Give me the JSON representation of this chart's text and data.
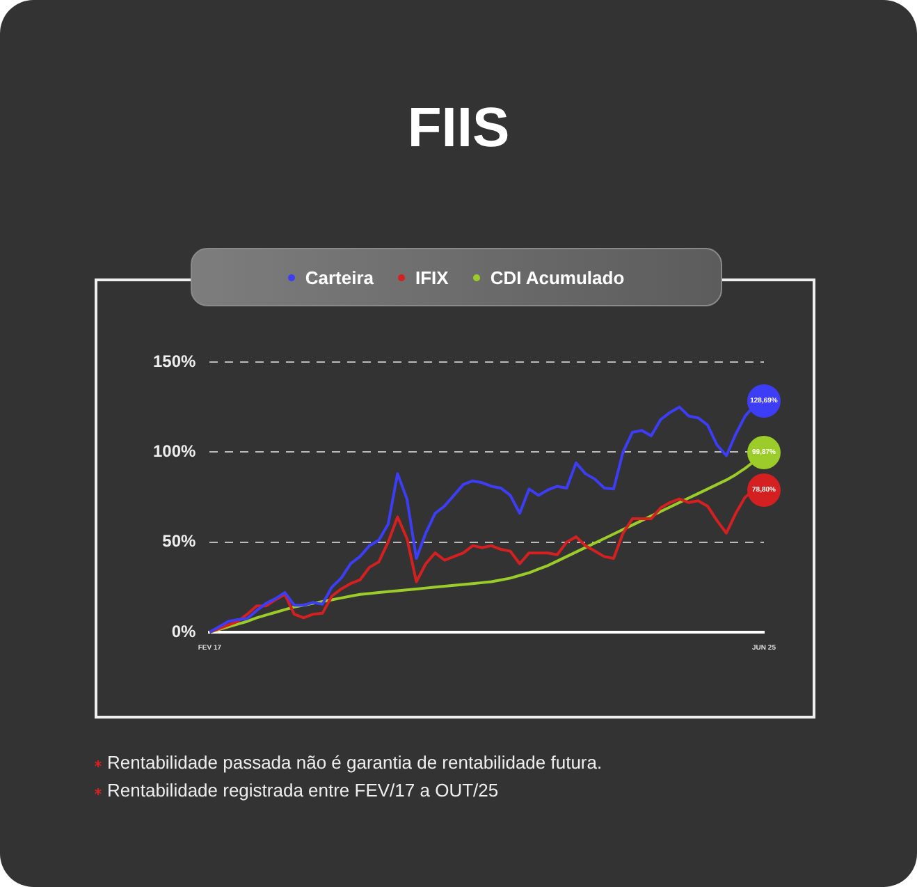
{
  "chart_data": {
    "type": "line",
    "title": "FIIS",
    "categories": [
      "FEV 17",
      null,
      null,
      null,
      null,
      null,
      null,
      null,
      null,
      null,
      null,
      null,
      null,
      null,
      null,
      null,
      null,
      null,
      null,
      null,
      null,
      null,
      null,
      null,
      null,
      null,
      null,
      null,
      null,
      null,
      null,
      null,
      null,
      null,
      null,
      null,
      null,
      null,
      null,
      null,
      null,
      null,
      null,
      null,
      null,
      null,
      null,
      null,
      null,
      null,
      null,
      null,
      null,
      null,
      null,
      null,
      null,
      null,
      null,
      "JUN 25"
    ],
    "series": [
      {
        "name": "Carteira",
        "color": "#3d3df5",
        "values": [
          0,
          3,
          6,
          7,
          7.5,
          12,
          16,
          18.6,
          22,
          15,
          15,
          16.5,
          15.5,
          25,
          30,
          38,
          42,
          48,
          51,
          60,
          88,
          74,
          41,
          55,
          66,
          70,
          76,
          82,
          84,
          83,
          81,
          80,
          76,
          66,
          79.5,
          76,
          79,
          81,
          80,
          94,
          88,
          85,
          80,
          79.5,
          100,
          111,
          112,
          109,
          118,
          122,
          125,
          120,
          119,
          115,
          104,
          98,
          110,
          120,
          126,
          128.69
        ],
        "value_labels": [
          null,
          null,
          null,
          null,
          null,
          null,
          null,
          null,
          null,
          null,
          null,
          null,
          null,
          null,
          null,
          null,
          null,
          null,
          null,
          null,
          null,
          null,
          null,
          null,
          null,
          null,
          null,
          null,
          null,
          null,
          null,
          null,
          null,
          null,
          null,
          null,
          null,
          null,
          null,
          null,
          null,
          null,
          null,
          null,
          null,
          null,
          null,
          null,
          null,
          null,
          null,
          null,
          null,
          null,
          null,
          null,
          null,
          null,
          null,
          "128,69%"
        ]
      },
      {
        "name": "IFIX",
        "color": "#d42020",
        "values": [
          0,
          2,
          4,
          6,
          10,
          14.6,
          14.6,
          18,
          21,
          10,
          8,
          10,
          10.5,
          20,
          24,
          27,
          29,
          36,
          39,
          50,
          64,
          52,
          28,
          38,
          44,
          40,
          42,
          44,
          48,
          47,
          48,
          46,
          45,
          38,
          44,
          44,
          44,
          43,
          50,
          53,
          48,
          45,
          42,
          41,
          55,
          63,
          63,
          63,
          69,
          72,
          74,
          72,
          73,
          70,
          62,
          55,
          66,
          75,
          79,
          78.8
        ],
        "value_labels": [
          null,
          null,
          null,
          null,
          null,
          null,
          null,
          null,
          null,
          null,
          null,
          null,
          null,
          null,
          null,
          null,
          null,
          null,
          null,
          null,
          null,
          null,
          null,
          null,
          null,
          null,
          null,
          null,
          null,
          null,
          null,
          null,
          null,
          null,
          null,
          null,
          null,
          null,
          null,
          null,
          null,
          null,
          null,
          null,
          null,
          null,
          null,
          null,
          null,
          null,
          null,
          null,
          null,
          null,
          null,
          null,
          null,
          null,
          null,
          "78,80%"
        ]
      },
      {
        "name": "CDI Acumulado",
        "color": "#9ccc2a",
        "values": [
          0,
          1.5,
          3,
          4.5,
          6,
          8,
          9.5,
          11,
          12.5,
          14,
          15,
          16,
          17,
          18,
          19,
          20,
          21,
          21.5,
          22,
          22.5,
          23,
          23.5,
          24,
          24.5,
          25,
          25.5,
          26,
          26.5,
          27,
          27.5,
          28,
          29,
          30,
          31.5,
          33,
          35,
          37,
          39.5,
          42,
          44.5,
          47,
          49.5,
          52,
          54.5,
          57,
          59.5,
          62,
          64.5,
          67,
          69.5,
          72,
          74.5,
          77,
          79.5,
          82,
          84.5,
          87.5,
          91,
          95,
          99.87
        ],
        "value_labels": [
          null,
          null,
          null,
          null,
          null,
          null,
          null,
          null,
          null,
          null,
          null,
          null,
          null,
          null,
          null,
          null,
          null,
          null,
          null,
          null,
          null,
          null,
          null,
          null,
          null,
          null,
          null,
          null,
          null,
          null,
          null,
          null,
          null,
          null,
          null,
          null,
          null,
          null,
          null,
          null,
          null,
          null,
          null,
          null,
          null,
          null,
          null,
          null,
          null,
          null,
          null,
          null,
          null,
          null,
          null,
          null,
          null,
          null,
          null,
          "99,87%"
        ]
      }
    ],
    "ylim": [
      0,
      150
    ],
    "yticks": [
      {
        "value": 0,
        "label": "0%"
      },
      {
        "value": 50,
        "label": "50%"
      },
      {
        "value": 100,
        "label": "100%"
      },
      {
        "value": 150,
        "label": "150%"
      }
    ],
    "grid": "y",
    "legend": "top",
    "marker": "none",
    "line_style": "solid",
    "annotations": [
      "Rentabilidade passada não é garantia de rentabilidade futura.",
      "Rentabilidade registrada entre FEV/17 a OUT/25"
    ]
  }
}
